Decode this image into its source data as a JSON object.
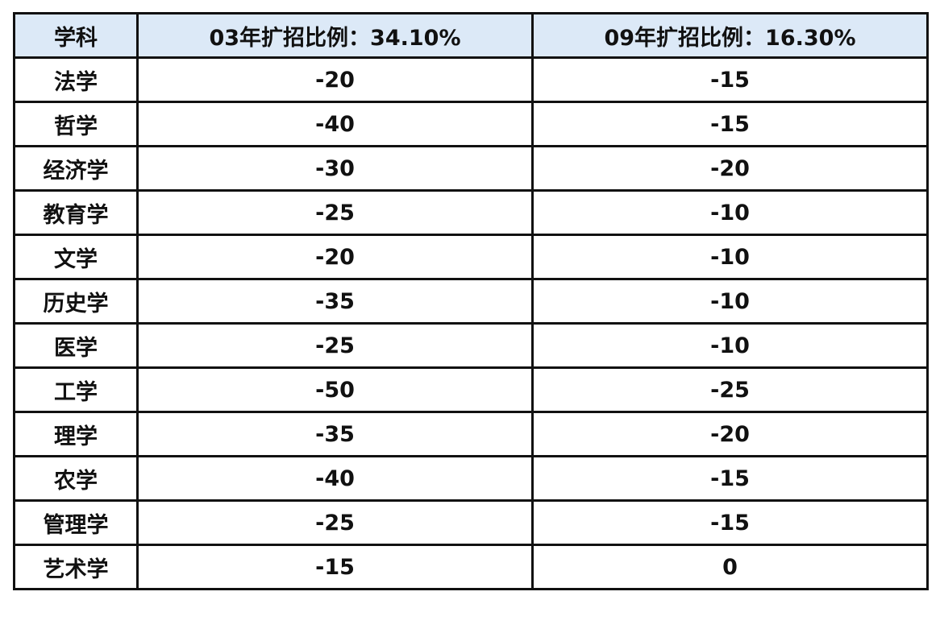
{
  "table": {
    "header_fill": "#dce9f7",
    "columns": [
      "学科",
      "03年扩招比例：34.10%",
      "09年扩招比例：16.30%"
    ],
    "rows": [
      {
        "subject": "法学",
        "v03": "-20",
        "v09": "-15"
      },
      {
        "subject": "哲学",
        "v03": "-40",
        "v09": "-15"
      },
      {
        "subject": "经济学",
        "v03": "-30",
        "v09": "-20"
      },
      {
        "subject": "教育学",
        "v03": "-25",
        "v09": "-10"
      },
      {
        "subject": "文学",
        "v03": "-20",
        "v09": "-10"
      },
      {
        "subject": "历史学",
        "v03": "-35",
        "v09": "-10"
      },
      {
        "subject": "医学",
        "v03": "-25",
        "v09": "-10"
      },
      {
        "subject": "工学",
        "v03": "-50",
        "v09": "-25"
      },
      {
        "subject": "理学",
        "v03": "-35",
        "v09": "-20"
      },
      {
        "subject": "农学",
        "v03": "-40",
        "v09": "-15"
      },
      {
        "subject": "管理学",
        "v03": "-25",
        "v09": "-15"
      },
      {
        "subject": "艺术学",
        "v03": "-15",
        "v09": "0"
      }
    ]
  }
}
